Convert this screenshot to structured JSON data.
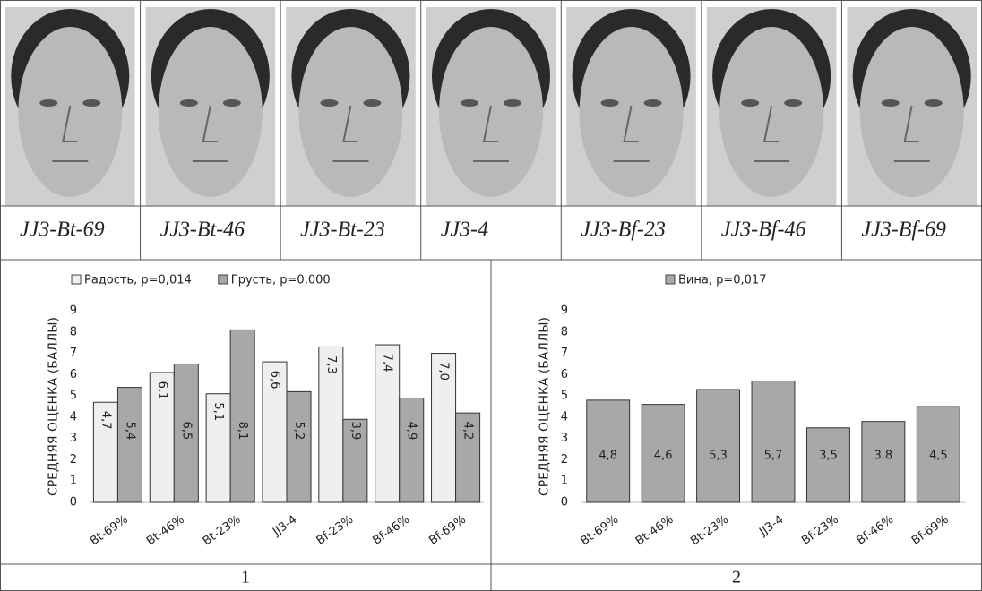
{
  "photos": [
    "JJ3-Bt-69",
    "JJ3-Bt-46",
    "JJ3-Bt-23",
    "JJ3-4",
    "JJ3-Bf-23",
    "JJ3-Bf-46",
    "JJ3-Bf-69"
  ],
  "panels": [
    "1",
    "2"
  ],
  "chart_data": [
    {
      "type": "bar",
      "y_label": "СРЕДНЯЯ ОЦЕНКА (БАЛЛЫ)",
      "categories": [
        "Bt-69%",
        "Bt-46%",
        "Bt-23%",
        "JJ3-4",
        "Bf-23%",
        "Bf-46%",
        "Bf-69%"
      ],
      "series": [
        {
          "name": "Радость, p=0,014",
          "color": "#efefef",
          "values": [
            4.7,
            6.1,
            5.1,
            6.6,
            7.3,
            7.4,
            7.0
          ],
          "value_labels": [
            "4,7",
            "6,1",
            "5,1",
            "6,6",
            "7,3",
            "7,4",
            "7,0"
          ]
        },
        {
          "name": "Грусть, p=0,000",
          "color": "#a8a8a8",
          "values": [
            5.4,
            6.5,
            8.1,
            5.2,
            3.9,
            4.9,
            4.2
          ],
          "value_labels": [
            "5,4",
            "6,5",
            "8,1",
            "5,2",
            "3,9",
            "4,9",
            "4,2"
          ]
        }
      ],
      "ylim": [
        0,
        9
      ],
      "yticks": [
        0,
        1,
        2,
        3,
        4,
        5,
        6,
        7,
        8,
        9
      ],
      "legend": "top"
    },
    {
      "type": "bar",
      "y_label": "СРЕДНЯЯ ОЦЕНКА (БАЛЛЫ)",
      "categories": [
        "Bt-69%",
        "Bt-46%",
        "Bt-23%",
        "JJ3-4",
        "Bf-23%",
        "Bf-46%",
        "Bf-69%"
      ],
      "series": [
        {
          "name": "Вина, p=0,017",
          "color": "#a8a8a8",
          "values": [
            4.8,
            4.6,
            5.3,
            5.7,
            3.5,
            3.8,
            4.5
          ],
          "value_labels": [
            "4,8",
            "4,6",
            "5,3",
            "5,7",
            "3,5",
            "3,8",
            "4,5"
          ]
        }
      ],
      "ylim": [
        0,
        9
      ],
      "yticks": [
        0,
        1,
        2,
        3,
        4,
        5,
        6,
        7,
        8,
        9
      ],
      "legend": "top"
    }
  ]
}
